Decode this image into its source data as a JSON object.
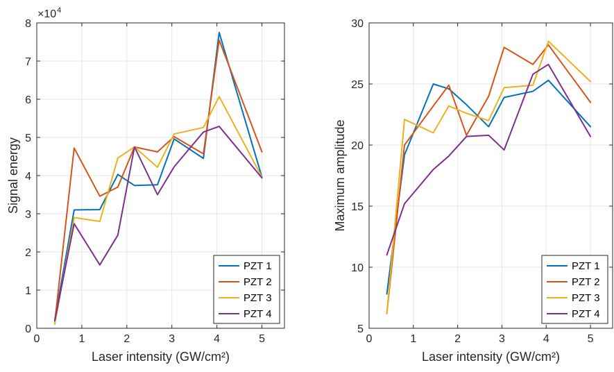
{
  "colors": {
    "PZT 1": "#0072BD",
    "PZT 2": "#D95319",
    "PZT 3": "#EDB120",
    "PZT 4": "#7E2F8E",
    "grid": "#e6e6e6",
    "axis": "#262626"
  },
  "chart_data": [
    {
      "type": "line",
      "xlabel": "Laser intensity (GW/cm²)",
      "ylabel": "Signal energy",
      "exponent_base": "×10",
      "exponent_power": "4",
      "xlim": [
        0,
        5.5
      ],
      "ylim": [
        0,
        80000
      ],
      "xticks": [
        0,
        1,
        2,
        3,
        4,
        5
      ],
      "xtick_labels": [
        "0",
        "1",
        "2",
        "3",
        "4",
        "5"
      ],
      "yticks": [
        0,
        10000,
        20000,
        30000,
        40000,
        50000,
        60000,
        70000,
        80000
      ],
      "ytick_labels": [
        "0",
        "1",
        "2",
        "3",
        "4",
        "5",
        "6",
        "7",
        "8"
      ],
      "grid": true,
      "legend_position": "bottom-right",
      "x": [
        0.4,
        0.83,
        1.4,
        1.8,
        2.17,
        2.68,
        3.05,
        3.7,
        4.05,
        5.0
      ],
      "series": [
        {
          "name": "PZT 1",
          "values": [
            2200,
            31000,
            31100,
            40300,
            37400,
            37600,
            49600,
            44500,
            77500,
            39600
          ]
        },
        {
          "name": "PZT 2",
          "values": [
            1600,
            47200,
            34600,
            37000,
            47500,
            46200,
            50200,
            45700,
            75500,
            46200
          ]
        },
        {
          "name": "PZT 3",
          "values": [
            1100,
            29000,
            28000,
            44600,
            47500,
            42200,
            50900,
            52600,
            60700,
            39600
          ]
        },
        {
          "name": "PZT 4",
          "values": [
            2000,
            27400,
            16600,
            24400,
            47500,
            35000,
            42300,
            51400,
            52900,
            39400
          ]
        }
      ]
    },
    {
      "type": "line",
      "xlabel": "Laser intensity (GW/cm²)",
      "ylabel": "Maximum amplitude",
      "xlim": [
        0,
        5.5
      ],
      "ylim": [
        5,
        30
      ],
      "xticks": [
        0,
        1,
        2,
        3,
        4,
        5
      ],
      "xtick_labels": [
        "0",
        "1",
        "2",
        "3",
        "4",
        "5"
      ],
      "yticks": [
        5,
        10,
        15,
        20,
        25,
        30
      ],
      "ytick_labels": [
        "5",
        "10",
        "15",
        "20",
        "25",
        "30"
      ],
      "grid": true,
      "legend_position": "bottom-right",
      "x": [
        0.4,
        0.8,
        1.45,
        1.8,
        2.2,
        2.7,
        3.05,
        3.7,
        4.05,
        5.0
      ],
      "series": [
        {
          "name": "PZT 1",
          "values": [
            7.8,
            19.2,
            25.0,
            24.6,
            23.3,
            21.5,
            23.9,
            24.4,
            25.3,
            21.5
          ]
        },
        {
          "name": "PZT 2",
          "values": [
            6.2,
            20.0,
            23.2,
            24.9,
            20.8,
            24.0,
            28.0,
            26.6,
            28.2,
            23.5
          ]
        },
        {
          "name": "PZT 3",
          "values": [
            6.2,
            22.1,
            21.0,
            23.2,
            22.6,
            22.0,
            24.7,
            24.9,
            28.5,
            25.2
          ]
        },
        {
          "name": "PZT 4",
          "values": [
            11.0,
            15.2,
            18.0,
            19.1,
            20.7,
            20.8,
            19.6,
            25.8,
            26.6,
            20.7
          ]
        }
      ]
    }
  ]
}
